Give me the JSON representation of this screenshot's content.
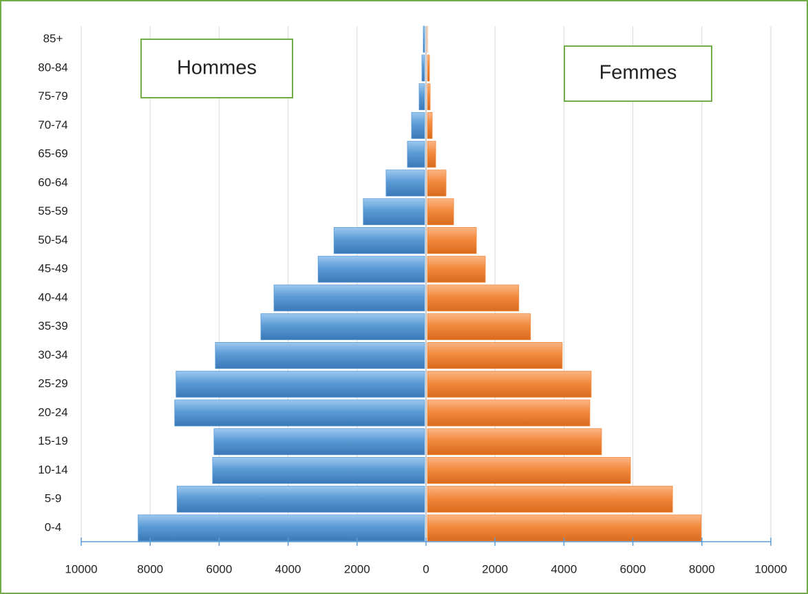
{
  "chart_data": {
    "type": "bar",
    "horizontal": true,
    "categories": [
      "0-4",
      "5-9",
      "10-14",
      "15-19",
      "20-24",
      "25-29",
      "30-34",
      "35-39",
      "40-44",
      "45-49",
      "50-54",
      "55-59",
      "60-64",
      "65-69",
      "70-74",
      "75-79",
      "80-84",
      "85+"
    ],
    "series": [
      {
        "name": "Hommes",
        "color": "#5b9bd5",
        "values": [
          -8350,
          -7220,
          -6190,
          -6150,
          -7290,
          -7250,
          -6110,
          -4790,
          -4410,
          -3130,
          -2670,
          -1820,
          -1160,
          -540,
          -420,
          -200,
          -120,
          -80
        ]
      },
      {
        "name": "Femmes",
        "color": "#f28a3e",
        "values": [
          7980,
          7150,
          5930,
          5090,
          4750,
          4790,
          3950,
          3030,
          2690,
          1720,
          1460,
          800,
          580,
          280,
          180,
          120,
          100,
          40
        ]
      }
    ],
    "xlim": [
      -10000,
      10000
    ],
    "xticks": [
      {
        "value": -10000,
        "label": "10000"
      },
      {
        "value": -8000,
        "label": "8000"
      },
      {
        "value": -6000,
        "label": "6000"
      },
      {
        "value": -4000,
        "label": "4000"
      },
      {
        "value": -2000,
        "label": "2000"
      },
      0,
      2000,
      4000,
      6000,
      8000,
      10000
    ],
    "grid": true
  }
}
